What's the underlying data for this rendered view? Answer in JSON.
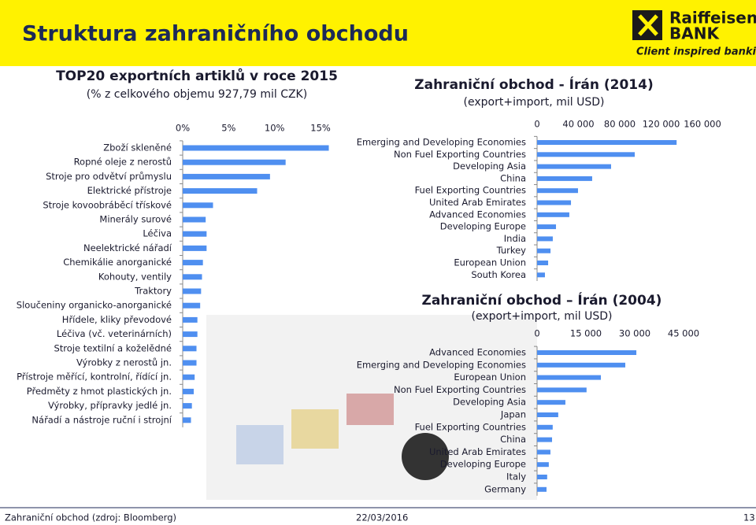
{
  "header": {
    "title": "Struktura zahraničního obchodu",
    "logo_name": "Raiffeisen",
    "logo_bank": "BANK",
    "tagline": "Client inspired banking"
  },
  "chart_data": [
    {
      "type": "hbar",
      "title": "TOP20 exportních artiklů v roce 2015",
      "subtitle": "(% z celkového objemu 927,79 mil CZK)",
      "color": "#4f8ff0",
      "categories": [
        "Zboží skleněné",
        "Ropné oleje z nerostů",
        "Stroje pro odvětví průmyslu",
        "Elektrické přístroje",
        "Stroje kovoobráběcí třískové",
        "Minerály surové",
        "Léčiva",
        "Neelektrické nářadí",
        "Chemikálie anorganické",
        "Kohouty, ventily",
        "Traktory",
        "Sloučeniny organicko-anorganické",
        "Hřídele, kliky převodové",
        "Léčiva (vč. veterinárních)",
        "Stroje textilní a koželědné",
        "Výrobky z nerostů jn.",
        "Přístroje měřící, kontrolní, řídící jn.",
        "Předměty z hmot plastických jn.",
        "Výrobky, přípravky jedlé jn.",
        "Nářadí a nástroje ruční i strojní"
      ],
      "values": [
        15.9,
        11.2,
        9.5,
        8.1,
        3.3,
        2.5,
        2.6,
        2.6,
        2.2,
        2.1,
        2.0,
        1.9,
        1.6,
        1.6,
        1.5,
        1.5,
        1.3,
        1.2,
        1.0,
        0.9
      ],
      "xlim": [
        0,
        16
      ],
      "xticks": [
        {
          "value": 0,
          "label": "0%"
        },
        {
          "value": 5,
          "label": "5%"
        },
        {
          "value": 10,
          "label": "10%"
        },
        {
          "value": 15,
          "label": "15%"
        }
      ]
    },
    {
      "type": "hbar",
      "title": "Zahraniční obchod - Írán (2014)",
      "subtitle": "(export+import, mil USD)",
      "color": "#4f8ff0",
      "categories": [
        "Emerging and Developing Economies",
        "Non Fuel Exporting Countries",
        "Developing Asia",
        "China",
        "Fuel Exporting Countries",
        "United Arab Emirates",
        "Advanced Economies",
        "Developing Europe",
        "India",
        "Turkey",
        "European Union",
        "South Korea"
      ],
      "values": [
        135000,
        94500,
        71600,
        53300,
        39600,
        32800,
        31200,
        18300,
        15200,
        13000,
        10700,
        7600
      ],
      "xlim": [
        0,
        160000
      ],
      "xticks": [
        0,
        {
          "value": 40000,
          "label": "40 000"
        },
        {
          "value": 80000,
          "label": "80 000"
        },
        {
          "value": 120000,
          "label": "120 000"
        },
        {
          "value": 160000,
          "label": "160 000"
        }
      ]
    },
    {
      "type": "hbar",
      "title": "Zahraniční obchod – Írán (2004)",
      "subtitle": "(export+import, mil USD)",
      "color": "#4f8ff0",
      "categories": [
        "Advanced Economies",
        "Emerging and Developing Economies",
        "European Union",
        "Non Fuel Exporting Countries",
        "Developing Asia",
        "Japan",
        "Fuel Exporting Countries",
        "China",
        "United Arab Emirates",
        "Developing Europe",
        "Italy",
        "Germany"
      ],
      "values": [
        30500,
        27100,
        19600,
        15200,
        8700,
        6500,
        4800,
        4600,
        4100,
        3600,
        3100,
        2900
      ],
      "xlim": [
        0,
        45000
      ],
      "xticks": [
        0,
        {
          "value": 15000,
          "label": "15 000"
        },
        {
          "value": 30000,
          "label": "30 000"
        },
        {
          "value": 45000,
          "label": "45 000"
        }
      ]
    }
  ],
  "footer": {
    "source": "Zahraniční obchod (zdroj: Bloomberg)",
    "date": "22/03/2016",
    "page": "13"
  }
}
